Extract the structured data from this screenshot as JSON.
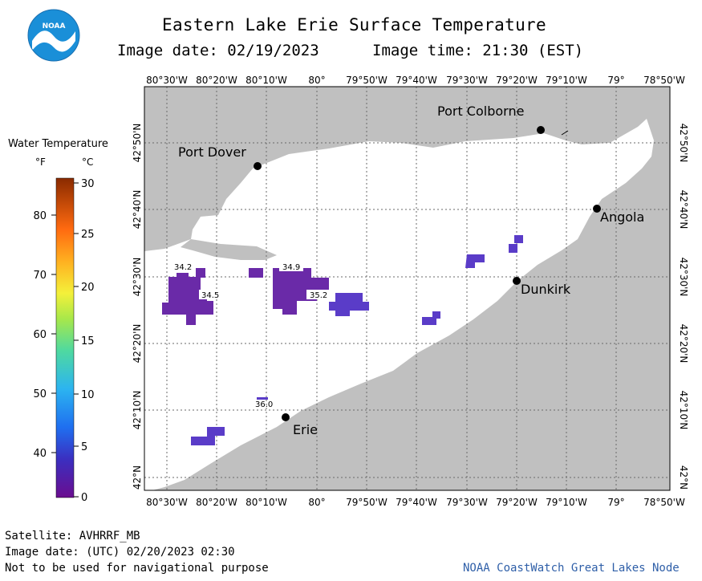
{
  "header": {
    "title": "Eastern Lake Erie Surface Temperature",
    "image_date": "Image date: 02/19/2023",
    "image_time": "Image time: 21:30 (EST)"
  },
  "logo": {
    "text": "NOAA"
  },
  "legend": {
    "title": "Water Temperature",
    "unit_f": "°F",
    "unit_c": "°C",
    "f_ticks": [
      "80",
      "70",
      "60",
      "50",
      "40"
    ],
    "c_ticks": [
      "30",
      "25",
      "20",
      "15",
      "10",
      "5",
      "0"
    ]
  },
  "axes": {
    "lon_labels": [
      "80°30'W",
      "80°20'W",
      "80°10'W",
      "80°",
      "79°50'W",
      "79°40'W",
      "79°30'W",
      "79°20'W",
      "79°10'W",
      "79°",
      "78°50'W"
    ],
    "lat_labels": [
      "42°50'N",
      "42°40'N",
      "42°30'N",
      "42°20'N",
      "42°10'N",
      "42°N"
    ]
  },
  "cities": [
    {
      "name": "Port Colborne"
    },
    {
      "name": "Port Dover"
    },
    {
      "name": "Angola"
    },
    {
      "name": "Dunkirk"
    },
    {
      "name": "Erie"
    }
  ],
  "temp_labels": [
    "34.2",
    "34.5",
    "34.9",
    "35.2",
    "36.0"
  ],
  "footer": {
    "satellite": "Satellite: AVHRRF_MB",
    "utc_date": "Image date: (UTC) 02/20/2023  02:30",
    "disclaimer": "Not to be used for navigational purpose",
    "credit": "NOAA CoastWatch Great Lakes Node"
  },
  "colors": {
    "land": "#c0c0c0",
    "water_ice": "#ffffff",
    "grid": "#555555",
    "cold_water": "#6a2aa8",
    "warm_patch": "#5a3cc8"
  }
}
